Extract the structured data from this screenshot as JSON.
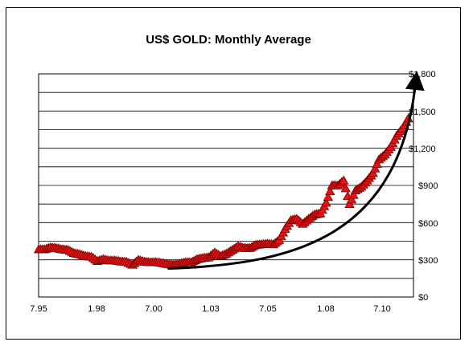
{
  "chart_data": {
    "type": "scatter",
    "title": "US$ GOLD: Monthly Average",
    "xlabel": "",
    "ylabel": "",
    "x_tick_labels": [
      "7.95",
      "1.98",
      "7.00",
      "1.03",
      "7.05",
      "1.08",
      "7.10"
    ],
    "y_tick_labels": [
      "$0",
      "$300",
      "$600",
      "$900",
      "$1,200",
      "$1,500",
      "$1,800"
    ],
    "ylim": [
      0,
      1800
    ],
    "x_axis": "date (month.year)",
    "grid": "horizontal",
    "legend": "none",
    "trend_arrow": "exponential curve from 2001 to beyond 2011",
    "series": [
      {
        "marker": "red-triangle",
        "x": [
          "1995-07",
          "1995-10",
          "1996-01",
          "1996-04",
          "1996-07",
          "1996-10",
          "1997-01",
          "1997-04",
          "1997-07",
          "1997-10",
          "1998-01",
          "1998-04",
          "1998-07",
          "1998-10",
          "1999-01",
          "1999-04",
          "1999-07",
          "1999-10",
          "2000-01",
          "2000-04",
          "2000-07",
          "2000-10",
          "2001-01",
          "2001-04",
          "2001-07",
          "2001-10",
          "2002-01",
          "2002-04",
          "2002-07",
          "2002-10",
          "2003-01",
          "2003-04",
          "2003-07",
          "2003-10",
          "2004-01",
          "2004-04",
          "2004-07",
          "2004-10",
          "2005-01",
          "2005-04",
          "2005-07",
          "2005-10",
          "2006-01",
          "2006-04",
          "2006-07",
          "2006-10",
          "2007-01",
          "2007-04",
          "2007-07",
          "2007-10",
          "2008-01",
          "2008-04",
          "2008-07",
          "2008-10",
          "2009-01",
          "2009-04",
          "2009-07",
          "2009-10",
          "2010-01",
          "2010-04",
          "2010-07",
          "2010-10",
          "2011-01",
          "2011-04"
        ],
        "values": [
          385,
          385,
          400,
          395,
          385,
          380,
          355,
          345,
          330,
          325,
          290,
          305,
          295,
          295,
          287,
          283,
          260,
          300,
          285,
          280,
          282,
          275,
          265,
          260,
          268,
          280,
          280,
          305,
          315,
          320,
          360,
          330,
          350,
          380,
          410,
          395,
          395,
          420,
          425,
          430,
          425,
          460,
          550,
          620,
          630,
          590,
          630,
          665,
          675,
          760,
          900,
          900,
          940,
          750,
          860,
          890,
          940,
          1000,
          1110,
          1150,
          1210,
          1300,
          1360,
          1440
        ]
      }
    ]
  }
}
